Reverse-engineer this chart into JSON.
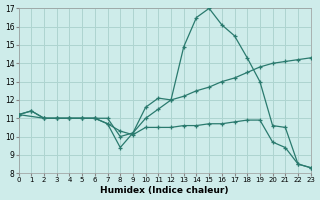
{
  "xlabel": "Humidex (Indice chaleur)",
  "bg_color": "#ceecea",
  "grid_color": "#aed4d0",
  "line_color": "#2a7a6e",
  "xlim": [
    0,
    23
  ],
  "ylim": [
    8,
    17
  ],
  "xticks": [
    0,
    1,
    2,
    3,
    4,
    5,
    6,
    7,
    8,
    9,
    10,
    11,
    12,
    13,
    14,
    15,
    16,
    17,
    18,
    19,
    20,
    21,
    22,
    23
  ],
  "yticks": [
    8,
    9,
    10,
    11,
    12,
    13,
    14,
    15,
    16,
    17
  ],
  "line1_x": [
    0,
    1,
    2,
    3,
    4,
    5,
    6,
    7,
    8,
    9,
    10,
    11,
    12,
    13,
    14,
    15,
    16,
    17,
    18,
    19,
    20,
    21,
    22,
    23
  ],
  "line1_y": [
    11.2,
    11.4,
    11.0,
    11.0,
    11.0,
    11.0,
    11.0,
    10.7,
    9.4,
    10.2,
    11.6,
    12.1,
    12.0,
    14.9,
    16.5,
    17.0,
    16.1,
    15.5,
    14.3,
    13.0,
    10.6,
    10.5,
    8.5,
    8.3
  ],
  "line2_x": [
    0,
    1,
    2,
    3,
    4,
    5,
    6,
    7,
    8,
    9,
    10,
    11,
    12,
    13,
    14,
    15,
    16,
    17,
    18,
    19,
    20,
    21,
    22,
    23
  ],
  "line2_y": [
    11.2,
    11.4,
    11.0,
    11.0,
    11.0,
    11.0,
    11.0,
    11.0,
    10.0,
    10.2,
    11.0,
    11.5,
    12.0,
    12.2,
    12.5,
    12.7,
    13.0,
    13.2,
    13.5,
    13.8,
    14.0,
    14.1,
    14.2,
    14.3
  ],
  "line3_x": [
    0,
    2,
    3,
    4,
    5,
    6,
    7,
    8,
    9,
    10,
    11,
    12,
    13,
    14,
    15,
    16,
    17,
    18,
    19,
    20,
    21,
    22,
    23
  ],
  "line3_y": [
    11.2,
    11.0,
    11.0,
    11.0,
    11.0,
    11.0,
    10.7,
    10.3,
    10.1,
    10.5,
    10.5,
    10.5,
    10.6,
    10.6,
    10.7,
    10.7,
    10.8,
    10.9,
    10.9,
    9.7,
    9.4,
    8.5,
    8.3
  ]
}
